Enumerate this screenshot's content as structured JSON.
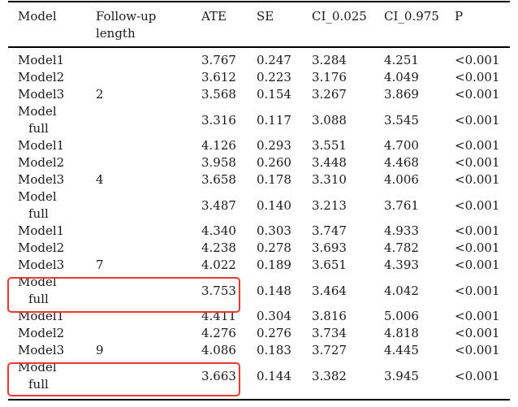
{
  "table": {
    "headers": {
      "model": "Model",
      "followup_l1": "Follow-up",
      "followup_l2": "length",
      "ate": "ATE",
      "se": "SE",
      "ci_low": "CI_0.025",
      "ci_high": "CI_0.975",
      "p": "P"
    },
    "groups": [
      {
        "followup": "2",
        "rows": [
          {
            "model": "Model1",
            "ate": "3.767",
            "se": "0.247",
            "ci_low": "3.284",
            "ci_high": "4.251",
            "p": "<0.001"
          },
          {
            "model": "Model2",
            "ate": "3.612",
            "se": "0.223",
            "ci_low": "3.176",
            "ci_high": "4.049",
            "p": "<0.001"
          },
          {
            "model": "Model3",
            "ate": "3.568",
            "se": "0.154",
            "ci_low": "3.267",
            "ci_high": "3.869",
            "p": "<0.001"
          },
          {
            "model_l1": "Model",
            "model_l2": "full",
            "ate": "3.316",
            "se": "0.117",
            "ci_low": "3.088",
            "ci_high": "3.545",
            "p": "<0.001"
          }
        ]
      },
      {
        "followup": "4",
        "rows": [
          {
            "model": "Model1",
            "ate": "4.126",
            "se": "0.293",
            "ci_low": "3.551",
            "ci_high": "4.700",
            "p": "<0.001"
          },
          {
            "model": "Model2",
            "ate": "3.958",
            "se": "0.260",
            "ci_low": "3.448",
            "ci_high": "4.468",
            "p": "<0.001"
          },
          {
            "model": "Model3",
            "ate": "3.658",
            "se": "0.178",
            "ci_low": "3.310",
            "ci_high": "4.006",
            "p": "<0.001"
          },
          {
            "model_l1": "Model",
            "model_l2": "full",
            "ate": "3.487",
            "se": "0.140",
            "ci_low": "3.213",
            "ci_high": "3.761",
            "p": "<0.001"
          }
        ]
      },
      {
        "followup": "7",
        "rows": [
          {
            "model": "Model1",
            "ate": "4.340",
            "se": "0.303",
            "ci_low": "3.747",
            "ci_high": "4.933",
            "p": "<0.001"
          },
          {
            "model": "Model2",
            "ate": "4.238",
            "se": "0.278",
            "ci_low": "3.693",
            "ci_high": "4.782",
            "p": "<0.001"
          },
          {
            "model": "Model3",
            "ate": "4.022",
            "se": "0.189",
            "ci_low": "3.651",
            "ci_high": "4.393",
            "p": "<0.001"
          },
          {
            "model_l1": "Model",
            "model_l2": "full",
            "ate": "3.753",
            "se": "0.148",
            "ci_low": "3.464",
            "ci_high": "4.042",
            "p": "<0.001"
          }
        ]
      },
      {
        "followup": "9",
        "rows": [
          {
            "model": "Model1",
            "ate": "4.411",
            "se": "0.304",
            "ci_low": "3.816",
            "ci_high": "5.006",
            "p": "<0.001"
          },
          {
            "model": "Model2",
            "ate": "4.276",
            "se": "0.276",
            "ci_low": "3.734",
            "ci_high": "4.818",
            "p": "<0.001"
          },
          {
            "model": "Model3",
            "ate": "4.086",
            "se": "0.183",
            "ci_low": "3.727",
            "ci_high": "4.445",
            "p": "<0.001"
          },
          {
            "model_l1": "Model",
            "model_l2": "full",
            "ate": "3.663",
            "se": "0.144",
            "ci_low": "3.382",
            "ci_high": "3.945",
            "p": "<0.001"
          }
        ]
      }
    ]
  },
  "highlight": {
    "color": "#e63b32",
    "targets": [
      "follow-up 7 / Model full",
      "follow-up 9 / Model full"
    ]
  }
}
